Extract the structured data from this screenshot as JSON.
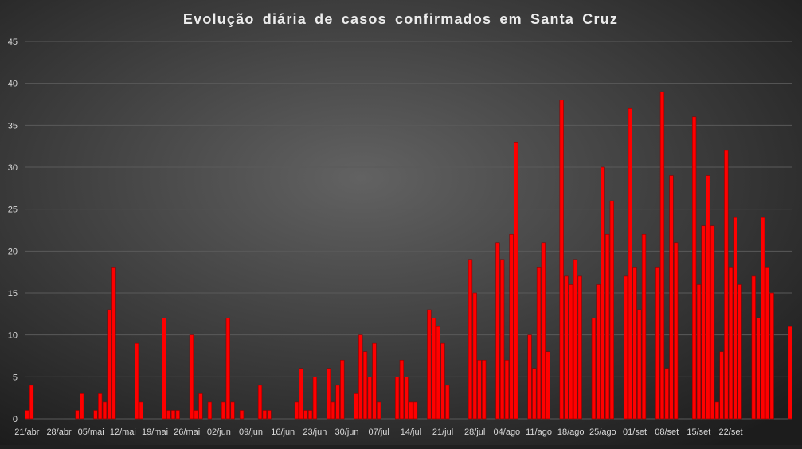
{
  "chart_data": {
    "type": "bar",
    "title": "Evolução  diária  de  casos  confirmados  em  Santa  Cruz",
    "xlabel": "",
    "ylabel": "",
    "ylim": [
      0,
      45
    ],
    "yticks": [
      0,
      5,
      10,
      15,
      20,
      25,
      30,
      35,
      40,
      45
    ],
    "grid": true,
    "legend": "none",
    "tick_labels": [
      "21/abr",
      "28/abr",
      "05/mai",
      "12/mai",
      "19/mai",
      "26/mai",
      "02/jun",
      "09/jun",
      "16/jun",
      "23/jun",
      "30/jun",
      "07/jul",
      "14/jul",
      "21/jul",
      "28/jul",
      "04/ago",
      "11/ago",
      "18/ago",
      "25/ago",
      "01/set",
      "08/set",
      "15/set",
      "22/set"
    ],
    "colors": {
      "bar": "#ff0000",
      "bar_edge": "#8b0000",
      "background_center": "#626262",
      "background_edge": "#1c1c1c",
      "grid": "#5a5a5a",
      "text": "#d9d9d9"
    },
    "values": [
      1,
      4,
      0,
      0,
      0,
      0,
      0,
      0,
      0,
      0,
      0,
      1,
      3,
      0,
      0,
      1,
      3,
      2,
      13,
      18,
      0,
      0,
      0,
      0,
      9,
      2,
      0,
      0,
      0,
      0,
      12,
      1,
      1,
      1,
      0,
      0,
      10,
      1,
      3,
      0,
      2,
      0,
      0,
      2,
      12,
      2,
      0,
      1,
      0,
      0,
      0,
      4,
      1,
      1,
      0,
      0,
      0,
      0,
      0,
      2,
      6,
      1,
      1,
      5,
      0,
      0,
      6,
      2,
      4,
      7,
      0,
      0,
      3,
      10,
      8,
      5,
      9,
      2,
      0,
      0,
      0,
      5,
      7,
      5,
      2,
      2,
      0,
      0,
      13,
      12,
      11,
      9,
      4,
      0,
      0,
      0,
      0,
      19,
      15,
      7,
      7,
      0,
      0,
      21,
      19,
      7,
      22,
      33,
      0,
      0,
      10,
      6,
      18,
      21,
      8,
      0,
      0,
      38,
      17,
      16,
      19,
      17,
      0,
      0,
      12,
      16,
      30,
      22,
      26,
      0,
      0,
      17,
      37,
      18,
      13,
      22,
      0,
      0,
      18,
      39,
      6,
      29,
      21,
      0,
      0,
      0,
      36,
      16,
      23,
      29,
      23,
      2,
      8,
      32,
      18,
      24,
      16,
      0,
      0,
      17,
      12,
      24,
      18,
      15,
      0,
      0,
      0,
      11
    ]
  }
}
